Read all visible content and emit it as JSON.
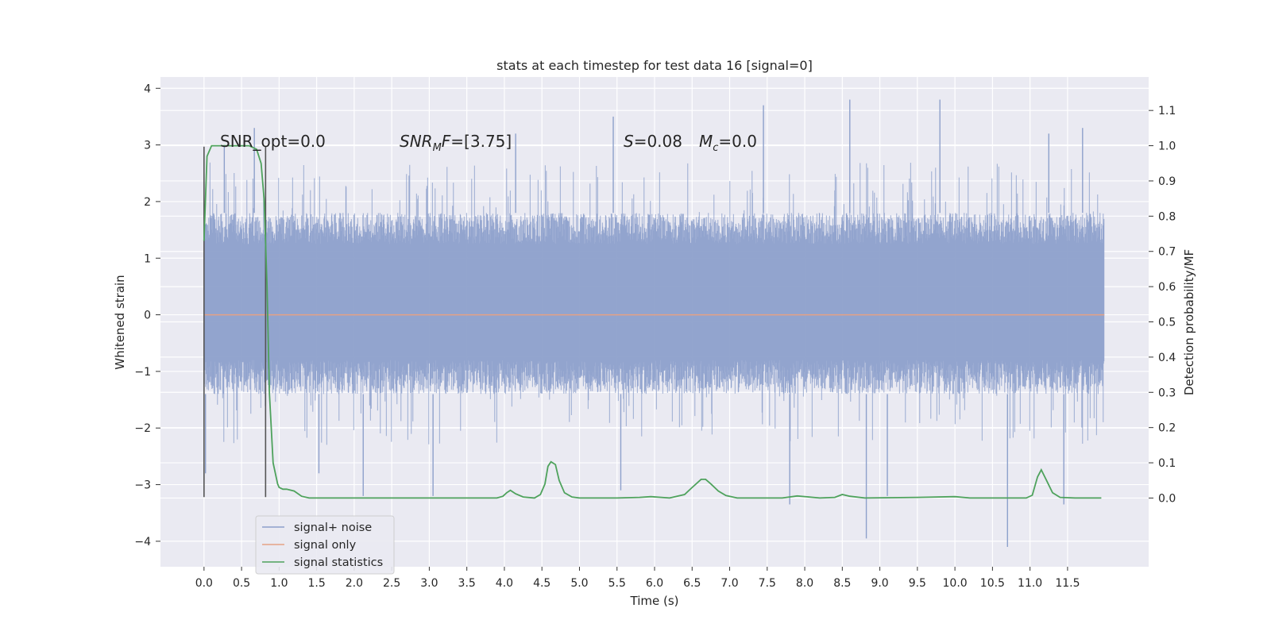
{
  "chart_data": {
    "type": "line",
    "title": "stats at each timestep for test data 16 [signal=0]",
    "xlabel": "Time (s)",
    "ylabel_left": "Whitened strain",
    "ylabel_right": "Detection probability/MF",
    "xlim": [
      -0.58,
      12.58
    ],
    "ylim_left": [
      -4.45,
      4.2
    ],
    "ylim_right": [
      -0.195,
      1.195
    ],
    "grid": true,
    "x_ticks": [
      0.0,
      0.5,
      1.0,
      1.5,
      2.0,
      2.5,
      3.0,
      3.5,
      4.0,
      4.5,
      5.0,
      5.5,
      6.0,
      6.5,
      7.0,
      7.5,
      8.0,
      8.5,
      9.0,
      9.5,
      10.0,
      10.5,
      11.0,
      11.5
    ],
    "x_tick_labels": [
      "0.0",
      "0.5",
      "1.0",
      "1.5",
      "2.0",
      "2.5",
      "3.0",
      "3.5",
      "4.0",
      "4.5",
      "5.0",
      "5.5",
      "6.0",
      "6.5",
      "7.0",
      "7.5",
      "8.0",
      "8.5",
      "9.0",
      "9.5",
      "10.0",
      "10.5",
      "11.0",
      "11.5"
    ],
    "y_left_ticks": [
      4,
      3,
      2,
      1,
      0,
      -1,
      -2,
      -3,
      -4
    ],
    "y_left_tick_labels": [
      "4",
      "3",
      "2",
      "1",
      "0",
      "−1",
      "−2",
      "−3",
      "−4"
    ],
    "y_right_ticks": [
      1.1,
      1.0,
      0.9,
      0.8,
      0.7,
      0.6,
      0.5,
      0.4,
      0.3,
      0.2,
      0.1,
      0.0
    ],
    "y_right_tick_labels": [
      "1.1",
      "1.0",
      "0.9",
      "0.8",
      "0.7",
      "0.6",
      "0.5",
      "0.4",
      "0.3",
      "0.2",
      "0.1",
      "0.0"
    ],
    "series": [
      {
        "name": "signal+ noise",
        "axis": "left",
        "color": "#8da0cb",
        "x_range": [
          0.0,
          11.99
        ],
        "typical_range": [
          -1.4,
          1.8
        ],
        "extremes": [
          {
            "x": 0.02,
            "y": -2.8
          },
          {
            "x": 0.27,
            "y": 3.0
          },
          {
            "x": 0.67,
            "y": 3.3
          },
          {
            "x": 1.53,
            "y": -2.8
          },
          {
            "x": 2.12,
            "y": -3.2
          },
          {
            "x": 3.05,
            "y": -3.2
          },
          {
            "x": 4.15,
            "y": 3.2
          },
          {
            "x": 5.45,
            "y": 3.5
          },
          {
            "x": 5.55,
            "y": -3.1
          },
          {
            "x": 7.45,
            "y": 3.7
          },
          {
            "x": 7.8,
            "y": -3.35
          },
          {
            "x": 8.6,
            "y": 3.8
          },
          {
            "x": 8.82,
            "y": -3.95
          },
          {
            "x": 9.1,
            "y": -3.2
          },
          {
            "x": 9.8,
            "y": 3.8
          },
          {
            "x": 10.7,
            "y": -4.1
          },
          {
            "x": 11.25,
            "y": 3.2
          },
          {
            "x": 11.45,
            "y": -3.35
          },
          {
            "x": 11.7,
            "y": 3.3
          }
        ]
      },
      {
        "name": "signal only",
        "axis": "left",
        "color": "#e5a185",
        "x": [
          0.0,
          11.99
        ],
        "y": [
          0.0,
          0.0
        ]
      },
      {
        "name": "signal statistics",
        "axis": "right",
        "color": "#4ea25c",
        "x": [
          0.0,
          0.04,
          0.1,
          0.2,
          0.3,
          0.45,
          0.6,
          0.7,
          0.76,
          0.8,
          0.84,
          0.87,
          0.92,
          0.98,
          1.0,
          1.05,
          1.1,
          1.2,
          1.3,
          1.4,
          1.5,
          1.7,
          2.0,
          3.0,
          3.9,
          3.98,
          4.03,
          4.08,
          4.15,
          4.25,
          4.4,
          4.48,
          4.54,
          4.58,
          4.62,
          4.68,
          4.73,
          4.8,
          4.9,
          5.0,
          5.5,
          5.8,
          5.95,
          6.2,
          6.4,
          6.5,
          6.62,
          6.68,
          6.75,
          6.85,
          6.95,
          7.1,
          7.3,
          7.7,
          7.9,
          8.2,
          8.4,
          8.5,
          8.6,
          8.8,
          9.5,
          10.0,
          10.2,
          10.5,
          10.95,
          11.03,
          11.1,
          11.15,
          11.22,
          11.3,
          11.4,
          11.6,
          11.95
        ],
        "y": [
          0.73,
          0.97,
          1.0,
          1.0,
          1.0,
          1.0,
          1.0,
          0.99,
          0.95,
          0.85,
          0.6,
          0.3,
          0.1,
          0.04,
          0.03,
          0.025,
          0.025,
          0.02,
          0.005,
          0.0,
          0.0,
          0.0,
          0.0,
          0.0,
          0.0,
          0.005,
          0.015,
          0.022,
          0.012,
          0.003,
          0.0,
          0.01,
          0.04,
          0.09,
          0.103,
          0.095,
          0.05,
          0.015,
          0.003,
          0.0,
          0.0,
          0.002,
          0.004,
          0.0,
          0.01,
          0.03,
          0.053,
          0.053,
          0.04,
          0.02,
          0.007,
          0.0,
          0.0,
          0.0,
          0.006,
          0.0,
          0.002,
          0.01,
          0.005,
          0.0,
          0.002,
          0.004,
          0.0,
          0.0,
          0.0,
          0.008,
          0.06,
          0.08,
          0.05,
          0.015,
          0.002,
          0.0,
          0.0
        ]
      }
    ],
    "vertical_lines": [
      {
        "x": 0.0,
        "color": "#555555"
      },
      {
        "x": 0.82,
        "color": "#555555"
      }
    ],
    "annotations": [
      {
        "key": "snr_opt",
        "text": "SNR_opt=0.0",
        "x": 0.2
      },
      {
        "key": "snr_mf",
        "text": "SNR_MF=[3.75]",
        "x": 2.6
      },
      {
        "key": "s",
        "text": "S=0.08",
        "x": 5.6
      },
      {
        "key": "mc",
        "text": "M_c=0.0",
        "x": 6.6
      }
    ],
    "legend_location": "lower-left"
  },
  "annotations_text": {
    "snr_opt": "SNR_opt=0.0",
    "snr_mf_sym": "SNR",
    "snr_mf_sub": "M",
    "snr_mf_sym2": "F",
    "snr_mf_val": "=[3.75]",
    "s_sym": "S",
    "s_val": "=0.08",
    "mc_sym": "M",
    "mc_sub": "c",
    "mc_val": "=0.0"
  },
  "legend": [
    {
      "label": "signal+ noise",
      "color": "#8da0cb"
    },
    {
      "label": "signal only",
      "color": "#e5a185"
    },
    {
      "label": "signal statistics",
      "color": "#4ea25c"
    }
  ]
}
